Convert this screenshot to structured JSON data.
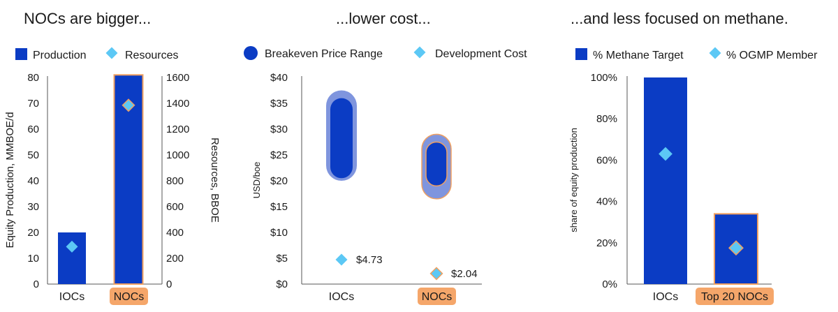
{
  "colors": {
    "blue": "#0b3cc4",
    "blue_light": "#7f95de",
    "diamond": "#5cc8f5",
    "orange": "#f0a060",
    "orange_fill": "#f5a66a"
  },
  "chart_data": [
    {
      "type": "bar",
      "title": "NOCs are bigger...",
      "categories": [
        "IOCs",
        "NOCs"
      ],
      "highlight_category": "NOCs",
      "series": [
        {
          "name": "Production",
          "marker": "bar",
          "axis": "left",
          "values": [
            20,
            81
          ]
        },
        {
          "name": "Resources",
          "marker": "diamond",
          "axis": "right",
          "values": [
            290,
            1385
          ]
        }
      ],
      "ylabel": "Equity Production, MMBOE/d",
      "y2label": "Resources, BBOE",
      "ylim": [
        0,
        80
      ],
      "y2lim": [
        0,
        1600
      ],
      "yticks": [
        "0",
        "10",
        "20",
        "30",
        "40",
        "50",
        "60",
        "70",
        "80"
      ],
      "y2ticks": [
        "0",
        "200",
        "400",
        "600",
        "800",
        "1000",
        "1200",
        "1400",
        "1600"
      ],
      "legend_position": "top-left",
      "grid": false
    },
    {
      "type": "range",
      "title": "...lower cost...",
      "categories": [
        "IOCs",
        "NOCs"
      ],
      "highlight_category": "NOCs",
      "series": [
        {
          "name": "Breakeven Price Range",
          "marker": "range",
          "outer": [
            [
              20,
              37.5
            ],
            [
              16.5,
              29
            ]
          ],
          "inner": [
            [
              20.5,
              36
            ],
            [
              19,
              27.5
            ]
          ]
        },
        {
          "name": "Development Cost",
          "marker": "diamond",
          "values": [
            4.73,
            2.04
          ],
          "labels": [
            "$4.73",
            "$2.04"
          ]
        }
      ],
      "ylabel": "USD/boe",
      "ylim": [
        0,
        40
      ],
      "yticks": [
        "$0",
        "$5",
        "$10",
        "$15",
        "$20",
        "$25",
        "$30",
        "$35",
        "$40"
      ],
      "legend_position": "top-left",
      "grid": false
    },
    {
      "type": "bar",
      "title": "...and less focused on methane.",
      "categories": [
        "IOCs",
        "Top 20 NOCs"
      ],
      "highlight_category": "Top 20 NOCs",
      "series": [
        {
          "name": "% Methane Target",
          "marker": "bar",
          "values": [
            100,
            34
          ]
        },
        {
          "name": "% OGMP Member",
          "marker": "diamond",
          "values": [
            63,
            17.5
          ]
        }
      ],
      "ylabel": "share of equity production",
      "ylim": [
        0,
        100
      ],
      "yticks": [
        "0%",
        "20%",
        "40%",
        "60%",
        "80%",
        "100%"
      ],
      "legend_position": "top-left",
      "grid": false
    }
  ]
}
